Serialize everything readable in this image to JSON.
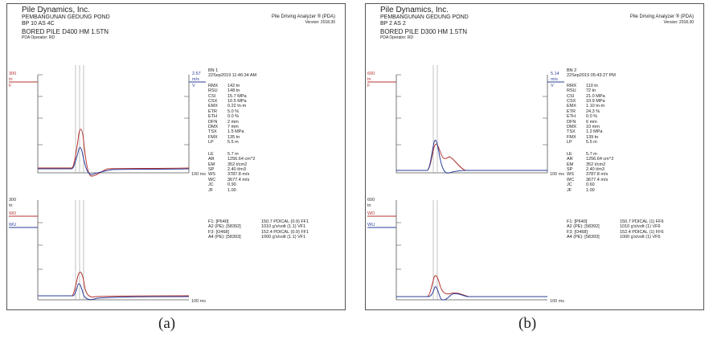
{
  "reports": [
    {
      "company": "Pile Dynamics, Inc.",
      "project": "PEMBANGUNAN GEDUNG POND",
      "pile_id": "BP 10 AS 4C",
      "pile_name": "BORED PILE D400 HM 1.5TN",
      "operator": "PDA Operator: RD",
      "device": "Pile Driving Analyzer ® (PDA)",
      "version": "Version: 2018.30",
      "force_scale_top": "300",
      "force_unit_top": "tn",
      "force_trace_label": "F",
      "velocity_scale": "2.57",
      "velocity_unit": "m/s",
      "velocity_trace_label": "V",
      "force_scale_bottom": "300",
      "force_unit_bottom": "tn",
      "wave_down_label": "WD",
      "wave_up_label": "WU",
      "time_label_top": "100 ms",
      "time_label_bottom": "100 ms",
      "blow_number": "BN 1",
      "blow_time": "22Sep2019 11:46:34 AM",
      "results": [
        {
          "key": "RMX",
          "value": "142 tn"
        },
        {
          "key": "RSU",
          "value": "148 tn"
        },
        {
          "key": "CSI",
          "value": "15.7 MPa"
        },
        {
          "key": "CSX",
          "value": "10.5 MPa"
        },
        {
          "key": "EMX",
          "value": "0.22 tn-m"
        },
        {
          "key": "ETR",
          "value": "5.0 %"
        },
        {
          "key": "ETH",
          "value": "0.0 %"
        },
        {
          "key": "DFN",
          "value": "2 mm"
        },
        {
          "key": "DMX",
          "value": "7 mm"
        },
        {
          "key": "TSX",
          "value": "1.5 MPa"
        },
        {
          "key": "FMX",
          "value": "135 tn"
        },
        {
          "key": "LP",
          "value": "5.5 m"
        }
      ],
      "parameters": [
        {
          "key": "LE",
          "value": "5.7 m"
        },
        {
          "key": "AR",
          "value": "1256.64 cm^2"
        },
        {
          "key": "EM",
          "value": "352 t/cm2"
        },
        {
          "key": "SP",
          "value": "2.40 t/m3"
        },
        {
          "key": "WS",
          "value": "3787.8 m/s"
        },
        {
          "key": "WC",
          "value": "3677.4 m/s"
        },
        {
          "key": "JC",
          "value": "0.90"
        },
        {
          "key": "JF",
          "value": "1.00"
        }
      ],
      "calibrations": [
        {
          "key": "F1: [P640]",
          "value": "150.7 PDICAL (0.9) FF1"
        },
        {
          "key": "A2 (PE): [58392]",
          "value": "1010 g's/volt (1.1) VF1"
        },
        {
          "key": "F3: [O468]",
          "value": "152.4 PDICAL (0.9) FF1"
        },
        {
          "key": "A4 (PE): [58393]",
          "value": "1000 g's/volt (1.1) VF1"
        }
      ],
      "caption": "(a)"
    },
    {
      "company": "Pile Dynamics, Inc.",
      "project": "PEMBANGUNAN GEDUNG POND",
      "pile_id": "BP 2 AS 2",
      "pile_name": "BORED PILE D300 HM 1.5TN",
      "operator": "PDA Operator: RD",
      "device": "Pile Driving Analyzer ® (PDA)",
      "version": "Version: 2018.30",
      "force_scale_top": "600",
      "force_unit_top": "tn",
      "force_trace_label": "F",
      "velocity_scale": "5.14",
      "velocity_unit": "m/s",
      "velocity_trace_label": "V",
      "force_scale_bottom": "600",
      "force_unit_bottom": "tn",
      "wave_down_label": "WD",
      "wave_up_label": "WU",
      "time_label_top": "100 ms",
      "time_label_bottom": "100 ms",
      "blow_number": "BN 2",
      "blow_time": "22Sep2019 05:43:27 PM",
      "results": [
        {
          "key": "RMX",
          "value": "110 tn"
        },
        {
          "key": "RSU",
          "value": "72 tn"
        },
        {
          "key": "CSI",
          "value": "21.0 MPa"
        },
        {
          "key": "CSX",
          "value": "10.9 MPa"
        },
        {
          "key": "EMX",
          "value": "1.10 tn-m"
        },
        {
          "key": "ETR",
          "value": "24.3 %"
        },
        {
          "key": "ETH",
          "value": "0.0 %"
        },
        {
          "key": "DFN",
          "value": "6 mm"
        },
        {
          "key": "DMX",
          "value": "10 mm"
        },
        {
          "key": "TSX",
          "value": "1.2 MPa"
        },
        {
          "key": "FMX",
          "value": "139 tn"
        },
        {
          "key": "LP",
          "value": "5.5 m"
        }
      ],
      "parameters": [
        {
          "key": "LE",
          "value": "5.7 m"
        },
        {
          "key": "AR",
          "value": "1256.64 cm^2"
        },
        {
          "key": "EM",
          "value": "352 t/cm2"
        },
        {
          "key": "SP",
          "value": "2.40 t/m3"
        },
        {
          "key": "WS",
          "value": "3787.8 m/s"
        },
        {
          "key": "WC",
          "value": "3677.4 m/s"
        },
        {
          "key": "JC",
          "value": "0.60"
        },
        {
          "key": "JF",
          "value": "1.00"
        }
      ],
      "calibrations": [
        {
          "key": "F1: [P640]",
          "value": "150.7 PDICAL (1) FF6"
        },
        {
          "key": "A2 (PE): [58392]",
          "value": "1010 g's/volt (1) VF6"
        },
        {
          "key": "F3: [O468]",
          "value": "152.4 PDICAL (1) FF6"
        },
        {
          "key": "A4 (PE): [58393]",
          "value": "1000 g's/volt (1) VF6"
        }
      ],
      "caption": "(b)"
    }
  ],
  "colors": {
    "force": "#b5332e",
    "velocity": "#2b3f9a",
    "grid": "#9a9a9a",
    "axis": "#555555"
  }
}
